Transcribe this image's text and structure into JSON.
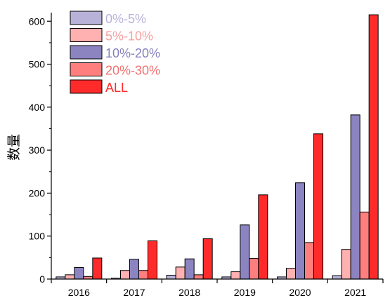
{
  "chart_data": {
    "type": "bar",
    "categories": [
      "2016",
      "2017",
      "2018",
      "2019",
      "2020",
      "2021"
    ],
    "series": [
      {
        "name": "0%-5%",
        "color": "#b8b2d9",
        "label_color": "#b8b2d9",
        "values": [
          5,
          2,
          9,
          5,
          5,
          8
        ]
      },
      {
        "name": "5%-10%",
        "color": "#ffb0b0",
        "label_color": "#f5a0a0",
        "values": [
          10,
          20,
          28,
          17,
          25,
          69
        ]
      },
      {
        "name": "10%-20%",
        "color": "#8b84c1",
        "label_color": "#8580bd",
        "values": [
          27,
          46,
          47,
          126,
          224,
          382
        ]
      },
      {
        "name": "20%-30%",
        "color": "#ff7f7f",
        "label_color": "#f07070",
        "values": [
          6,
          20,
          10,
          48,
          85,
          156
        ]
      },
      {
        "name": "ALL",
        "color": "#ff2b2b",
        "label_color": "#ff2b2b",
        "values": [
          49,
          89,
          94,
          196,
          338,
          615
        ]
      }
    ],
    "ylabel": "数量",
    "xlabel": "",
    "ylim": [
      0,
      620
    ],
    "yticks": [
      0,
      100,
      200,
      300,
      400,
      500,
      600
    ],
    "grid": false,
    "legend_position": "top-left"
  }
}
